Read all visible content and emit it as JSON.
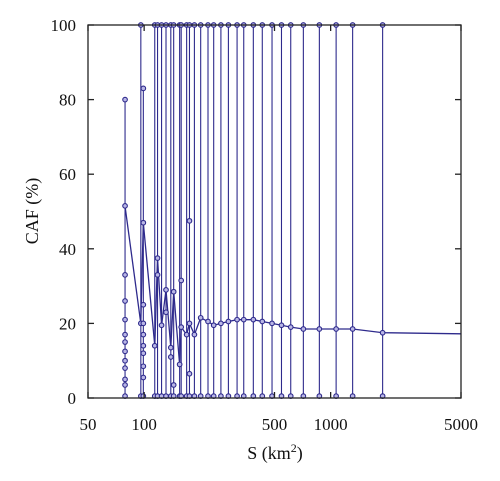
{
  "chart_data": {
    "type": "scatter",
    "xscale": "log",
    "xlim": [
      50,
      5000
    ],
    "ylim": [
      0,
      100
    ],
    "xlabel": "S (km²)",
    "xlabel_base": "S (km",
    "xlabel_sup": "2",
    "xlabel_tail": ")",
    "ylabel": "CAF (%)",
    "x_ticks": [
      50,
      100,
      500,
      1000,
      5000
    ],
    "x_tick_labels": [
      "50",
      "100",
      "500",
      "1000",
      "5000"
    ],
    "y_ticks": [
      0,
      20,
      40,
      60,
      80,
      100
    ],
    "y_tick_labels": [
      "0",
      "20",
      "40",
      "60",
      "80",
      "100"
    ],
    "colors": {
      "series": "#2e2a8c",
      "marker_fill": "#b9b6e6",
      "axis": "#222222"
    },
    "mean_curve": [
      [
        79,
        51.5
      ],
      [
        96,
        20
      ],
      [
        99,
        47
      ],
      [
        114,
        14
      ],
      [
        118,
        37.5
      ],
      [
        124,
        19.5
      ],
      [
        131,
        29
      ],
      [
        139,
        13.5
      ],
      [
        144,
        28.5
      ],
      [
        155,
        9
      ],
      [
        158,
        19
      ],
      [
        169,
        17
      ],
      [
        175,
        20
      ],
      [
        186,
        17
      ],
      [
        201,
        21.5
      ],
      [
        220,
        20.5
      ],
      [
        236,
        19.5
      ],
      [
        258,
        20
      ],
      [
        283,
        20.5
      ],
      [
        315,
        21
      ],
      [
        342,
        21
      ],
      [
        385,
        21
      ],
      [
        430,
        20.5
      ],
      [
        485,
        20
      ],
      [
        545,
        19.5
      ],
      [
        611,
        19
      ],
      [
        714,
        18.5
      ],
      [
        870,
        18.5
      ],
      [
        1070,
        18.5
      ],
      [
        1312,
        18.5
      ],
      [
        1900,
        17.5
      ],
      [
        5000,
        17.2
      ]
    ],
    "transects": [
      {
        "x": 79,
        "y_top": 80,
        "points": [
          80,
          51.5,
          33,
          26,
          21,
          17,
          15,
          12.5,
          10,
          8,
          5,
          3.5,
          0.5
        ]
      },
      {
        "x": 96,
        "y_top": 100,
        "points": [
          100,
          20,
          0.5
        ]
      },
      {
        "x": 99,
        "y_top": 83,
        "points": [
          83,
          47,
          25,
          20,
          17,
          14,
          12,
          8.5,
          5.5,
          0.5
        ]
      },
      {
        "x": 114,
        "y_top": 100,
        "points": [
          100,
          14,
          0.5
        ]
      },
      {
        "x": 118,
        "y_top": 100,
        "points": [
          100,
          37.5,
          33,
          0.5
        ]
      },
      {
        "x": 124,
        "y_top": 100,
        "points": [
          100,
          19.5,
          0.5
        ]
      },
      {
        "x": 131,
        "y_top": 100,
        "points": [
          100,
          29,
          23,
          0.5
        ]
      },
      {
        "x": 139,
        "y_top": 100,
        "points": [
          100,
          13.5,
          11,
          0.5
        ]
      },
      {
        "x": 144,
        "y_top": 100,
        "points": [
          100,
          28.5,
          3.5,
          0.5
        ]
      },
      {
        "x": 155,
        "y_top": 100,
        "points": [
          100,
          9,
          0.5
        ]
      },
      {
        "x": 158,
        "y_top": 100,
        "points": [
          100,
          31.5,
          19,
          0.5
        ]
      },
      {
        "x": 169,
        "y_top": 100,
        "points": [
          100,
          17,
          0.5
        ]
      },
      {
        "x": 175,
        "y_top": 100,
        "points": [
          100,
          47.5,
          20,
          6.5,
          0.5
        ]
      },
      {
        "x": 186,
        "y_top": 100,
        "points": [
          100,
          17,
          0.5
        ]
      },
      {
        "x": 201,
        "y_top": 100,
        "points": [
          100,
          21.5,
          0.5
        ]
      },
      {
        "x": 220,
        "y_top": 100,
        "points": [
          100,
          20.5,
          0.5
        ]
      },
      {
        "x": 236,
        "y_top": 100,
        "points": [
          100,
          19.5,
          0.5
        ]
      },
      {
        "x": 258,
        "y_top": 100,
        "points": [
          100,
          20,
          0.5
        ]
      },
      {
        "x": 283,
        "y_top": 100,
        "points": [
          100,
          20.5,
          0.5
        ]
      },
      {
        "x": 315,
        "y_top": 100,
        "points": [
          100,
          21,
          0.5
        ]
      },
      {
        "x": 342,
        "y_top": 100,
        "points": [
          100,
          21,
          0.5
        ]
      },
      {
        "x": 385,
        "y_top": 100,
        "points": [
          100,
          21,
          0.5
        ]
      },
      {
        "x": 430,
        "y_top": 100,
        "points": [
          100,
          20.5,
          0.5
        ]
      },
      {
        "x": 485,
        "y_top": 100,
        "points": [
          100,
          20,
          0.5
        ]
      },
      {
        "x": 545,
        "y_top": 100,
        "points": [
          100,
          19.5,
          0.5
        ]
      },
      {
        "x": 611,
        "y_top": 100,
        "points": [
          100,
          19,
          0.5
        ]
      },
      {
        "x": 714,
        "y_top": 100,
        "points": [
          100,
          18.5,
          0.5
        ]
      },
      {
        "x": 870,
        "y_top": 100,
        "points": [
          100,
          18.5,
          0.5
        ]
      },
      {
        "x": 1070,
        "y_top": 100,
        "points": [
          100,
          18.5,
          0.5
        ]
      },
      {
        "x": 1312,
        "y_top": 100,
        "points": [
          100,
          18.5,
          0.5
        ]
      },
      {
        "x": 1900,
        "y_top": 100,
        "points": [
          100,
          17.5,
          0.5
        ]
      }
    ]
  }
}
